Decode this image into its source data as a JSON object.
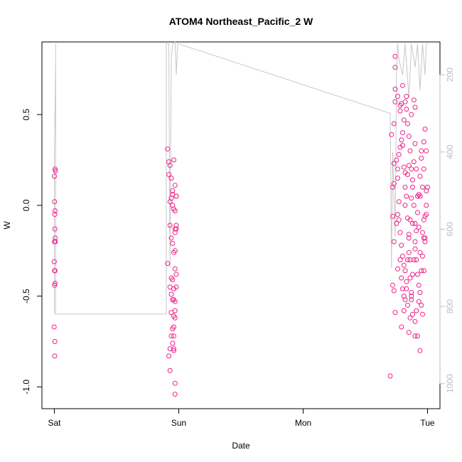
{
  "chart_data": {
    "type": "scatter",
    "title": "ATOM4 Northeast_Pacific_2 W",
    "xlabel": "Date",
    "ylabel": "W",
    "x_ticks": [
      {
        "label": "Sat",
        "day": 0
      },
      {
        "label": "Sun",
        "day": 1
      },
      {
        "label": "Mon",
        "day": 2
      },
      {
        "label": "Tue",
        "day": 3
      }
    ],
    "xlim_days": [
      -0.1,
      3.1
    ],
    "ylim": [
      -1.12,
      0.9
    ],
    "y_ticks": [
      0.5,
      0.0,
      -0.5,
      -1.0
    ],
    "y_tick_labels": [
      "0.5",
      "0.0",
      "-0.5",
      "-1.0"
    ],
    "right_axis": {
      "ticks": [
        200,
        400,
        600,
        800,
        1000
      ],
      "tick_labels": [
        "200",
        "400",
        "600",
        "800",
        "1000"
      ],
      "ylim": [
        115,
        1065
      ],
      "reversed": true,
      "color": "#bdbdbd"
    },
    "series": [
      {
        "type": "points",
        "color": "#ee1f8c",
        "points": [
          [
            0.005,
            0.2
          ],
          [
            0.008,
            0.19
          ],
          [
            0.0,
            0.16
          ],
          [
            0.001,
            0.02
          ],
          [
            0.006,
            -0.03
          ],
          [
            0.003,
            -0.05
          ],
          [
            0.004,
            -0.13
          ],
          [
            0.007,
            -0.18
          ],
          [
            0.001,
            -0.2
          ],
          [
            0.008,
            -0.2
          ],
          [
            -0.001,
            -0.31
          ],
          [
            0.002,
            -0.36
          ],
          [
            0.005,
            -0.36
          ],
          [
            0.006,
            -0.43
          ],
          [
            0.001,
            -0.44
          ],
          [
            -0.002,
            -0.67
          ],
          [
            0.004,
            -0.75
          ],
          [
            0.003,
            -0.83
          ],
          [
            0.91,
            0.31
          ],
          [
            0.96,
            0.25
          ],
          [
            0.92,
            0.24
          ],
          [
            0.93,
            0.22
          ],
          [
            0.92,
            0.17
          ],
          [
            0.94,
            0.15
          ],
          [
            0.97,
            0.11
          ],
          [
            0.95,
            0.08
          ],
          [
            0.95,
            0.06
          ],
          [
            0.98,
            0.05
          ],
          [
            0.98,
            0.05
          ],
          [
            0.94,
            0.04
          ],
          [
            0.93,
            0.02
          ],
          [
            0.95,
            0.0
          ],
          [
            0.96,
            -0.02
          ],
          [
            0.97,
            -0.03
          ],
          [
            0.93,
            -0.11
          ],
          [
            0.98,
            -0.11
          ],
          [
            0.97,
            -0.13
          ],
          [
            0.98,
            -0.13
          ],
          [
            0.97,
            -0.15
          ],
          [
            0.94,
            -0.18
          ],
          [
            0.95,
            -0.21
          ],
          [
            0.97,
            -0.25
          ],
          [
            0.96,
            -0.26
          ],
          [
            0.91,
            -0.32
          ],
          [
            0.97,
            -0.35
          ],
          [
            0.98,
            -0.38
          ],
          [
            0.94,
            -0.4
          ],
          [
            0.95,
            -0.41
          ],
          [
            0.93,
            -0.45
          ],
          [
            0.96,
            -0.46
          ],
          [
            0.98,
            -0.45
          ],
          [
            0.94,
            -0.49
          ],
          [
            0.95,
            -0.52
          ],
          [
            0.96,
            -0.52
          ],
          [
            0.97,
            -0.53
          ],
          [
            0.94,
            -0.59
          ],
          [
            0.97,
            -0.58
          ],
          [
            0.96,
            -0.61
          ],
          [
            0.97,
            -0.62
          ],
          [
            0.96,
            -0.67
          ],
          [
            0.95,
            -0.68
          ],
          [
            0.94,
            -0.72
          ],
          [
            0.96,
            -0.72
          ],
          [
            0.95,
            -0.76
          ],
          [
            0.96,
            -0.79
          ],
          [
            0.93,
            -0.79
          ],
          [
            0.96,
            -0.8
          ],
          [
            0.92,
            -0.83
          ],
          [
            0.93,
            -0.91
          ],
          [
            0.97,
            -0.98
          ],
          [
            0.97,
            -1.04
          ],
          [
            2.71,
            0.39
          ],
          [
            2.73,
            0.45
          ],
          [
            2.74,
            0.57
          ],
          [
            2.74,
            0.64
          ],
          [
            2.74,
            0.76
          ],
          [
            2.74,
            0.82
          ],
          [
            2.76,
            0.6
          ],
          [
            2.78,
            0.52
          ],
          [
            2.79,
            0.56
          ],
          [
            2.79,
            0.36
          ],
          [
            2.8,
            0.33
          ],
          [
            2.81,
            0.21
          ],
          [
            2.82,
            0.18
          ],
          [
            2.82,
            0.1
          ],
          [
            2.83,
            0.05
          ],
          [
            2.84,
            -0.07
          ],
          [
            2.85,
            -0.16
          ],
          [
            2.85,
            -0.26
          ],
          [
            2.86,
            -0.4
          ],
          [
            2.87,
            -0.5
          ],
          [
            2.87,
            -0.52
          ],
          [
            2.88,
            -0.6
          ],
          [
            2.9,
            -0.64
          ],
          [
            2.9,
            -0.72
          ],
          [
            2.72,
            -0.44
          ],
          [
            2.73,
            -0.47
          ],
          [
            2.74,
            -0.59
          ],
          [
            2.7,
            -0.94
          ],
          [
            2.72,
            0.1
          ],
          [
            2.73,
            0.12
          ],
          [
            2.73,
            0.23
          ],
          [
            2.76,
            0.2
          ],
          [
            2.77,
            0.28
          ],
          [
            2.78,
            0.32
          ],
          [
            2.8,
            0.4
          ],
          [
            2.81,
            0.47
          ],
          [
            2.82,
            0.57
          ],
          [
            2.83,
            0.6
          ],
          [
            2.84,
            0.45
          ],
          [
            2.85,
            0.38
          ],
          [
            2.86,
            0.3
          ],
          [
            2.87,
            0.2
          ],
          [
            2.88,
            0.1
          ],
          [
            2.89,
            0.0
          ],
          [
            2.9,
            -0.1
          ],
          [
            2.9,
            -0.2
          ],
          [
            2.91,
            -0.3
          ],
          [
            2.92,
            -0.38
          ],
          [
            2.93,
            -0.44
          ],
          [
            2.94,
            -0.48
          ],
          [
            2.95,
            -0.55
          ],
          [
            2.96,
            -0.6
          ],
          [
            2.97,
            -0.36
          ],
          [
            2.98,
            -0.2
          ],
          [
            2.99,
            0.0
          ],
          [
            3.0,
            0.1
          ],
          [
            2.97,
            0.35
          ],
          [
            2.98,
            0.42
          ],
          [
            2.99,
            0.3
          ],
          [
            2.75,
            -0.1
          ],
          [
            2.76,
            -0.05
          ],
          [
            2.77,
            0.02
          ],
          [
            2.78,
            -0.15
          ],
          [
            2.79,
            -0.22
          ],
          [
            2.8,
            -0.28
          ],
          [
            2.81,
            -0.33
          ],
          [
            2.82,
            -0.36
          ],
          [
            2.83,
            -0.42
          ],
          [
            2.84,
            -0.55
          ],
          [
            2.85,
            -0.7
          ],
          [
            2.86,
            -0.62
          ],
          [
            2.87,
            -0.48
          ],
          [
            2.88,
            -0.38
          ],
          [
            2.89,
            -0.3
          ],
          [
            2.9,
            -0.24
          ],
          [
            2.91,
            -0.14
          ],
          [
            2.92,
            -0.04
          ],
          [
            2.93,
            0.06
          ],
          [
            2.94,
            0.16
          ],
          [
            2.95,
            0.26
          ],
          [
            2.96,
            0.1
          ],
          [
            2.97,
            -0.08
          ],
          [
            2.98,
            -0.18
          ],
          [
            2.99,
            -0.05
          ],
          [
            2.75,
            0.25
          ],
          [
            2.76,
            0.15
          ],
          [
            2.77,
            -0.08
          ],
          [
            2.78,
            -0.3
          ],
          [
            2.79,
            -0.4
          ],
          [
            2.8,
            -0.46
          ],
          [
            2.81,
            -0.5
          ],
          [
            2.82,
            -0.52
          ],
          [
            2.83,
            -0.46
          ],
          [
            2.84,
            -0.3
          ],
          [
            2.85,
            -0.18
          ],
          [
            2.86,
            -0.08
          ],
          [
            2.87,
            0.04
          ],
          [
            2.88,
            0.14
          ],
          [
            2.89,
            0.24
          ],
          [
            2.9,
            0.34
          ],
          [
            2.91,
            0.2
          ],
          [
            2.92,
            0.05
          ],
          [
            2.93,
            -0.12
          ],
          [
            2.94,
            -0.26
          ],
          [
            2.95,
            -0.36
          ],
          [
            2.96,
            -0.28
          ],
          [
            2.97,
            -0.18
          ],
          [
            2.98,
            -0.06
          ],
          [
            2.99,
            0.08
          ],
          [
            2.79,
            -0.67
          ],
          [
            2.85,
            0.22
          ],
          [
            2.88,
            -0.1
          ],
          [
            2.91,
            -0.58
          ],
          [
            2.93,
            -0.53
          ],
          [
            2.94,
            -0.8
          ],
          [
            2.95,
            0.3
          ],
          [
            2.8,
            0.66
          ],
          [
            2.83,
            0.53
          ],
          [
            2.87,
            0.5
          ],
          [
            2.92,
            -0.72
          ],
          [
            2.89,
            0.58
          ],
          [
            2.81,
            -0.58
          ],
          [
            2.86,
            -0.3
          ],
          [
            2.76,
            -0.35
          ],
          [
            2.73,
            -0.2
          ],
          [
            2.72,
            -0.06
          ],
          [
            2.96,
            -0.15
          ],
          [
            2.78,
            0.55
          ],
          [
            2.84,
            0.17
          ],
          [
            2.82,
            0.0
          ],
          [
            2.9,
            0.54
          ],
          [
            2.94,
            0.05
          ],
          [
            2.97,
            0.2
          ]
        ]
      }
    ],
    "lines": [
      {
        "axis": "right",
        "color": "#c8c8c8",
        "points": [
          [
            0.0,
            820
          ],
          [
            0.0,
            420
          ],
          [
            0.01,
            160
          ],
          [
            0.01,
            120
          ],
          [
            0.01,
            820
          ],
          [
            0.9,
            820
          ],
          [
            0.9,
            120
          ],
          [
            0.92,
            120
          ],
          [
            0.93,
            700
          ],
          [
            0.94,
            160
          ],
          [
            0.95,
            120
          ],
          [
            0.97,
            110
          ],
          [
            0.98,
            200
          ],
          [
            0.99,
            120
          ],
          [
            1.0,
            120
          ],
          [
            2.7,
            300
          ],
          [
            2.71,
            700
          ],
          [
            2.72,
            400
          ],
          [
            2.74,
            620
          ],
          [
            2.75,
            200
          ],
          [
            2.76,
            120
          ],
          [
            2.77,
            160
          ],
          [
            2.8,
            200
          ],
          [
            2.82,
            120
          ],
          [
            2.85,
            260
          ],
          [
            2.87,
            120
          ],
          [
            2.9,
            180
          ],
          [
            2.92,
            120
          ],
          [
            2.94,
            240
          ],
          [
            2.96,
            120
          ],
          [
            2.98,
            200
          ],
          [
            2.99,
            120
          ],
          [
            3.0,
            120
          ]
        ]
      }
    ],
    "grid": false,
    "legend": "none"
  }
}
